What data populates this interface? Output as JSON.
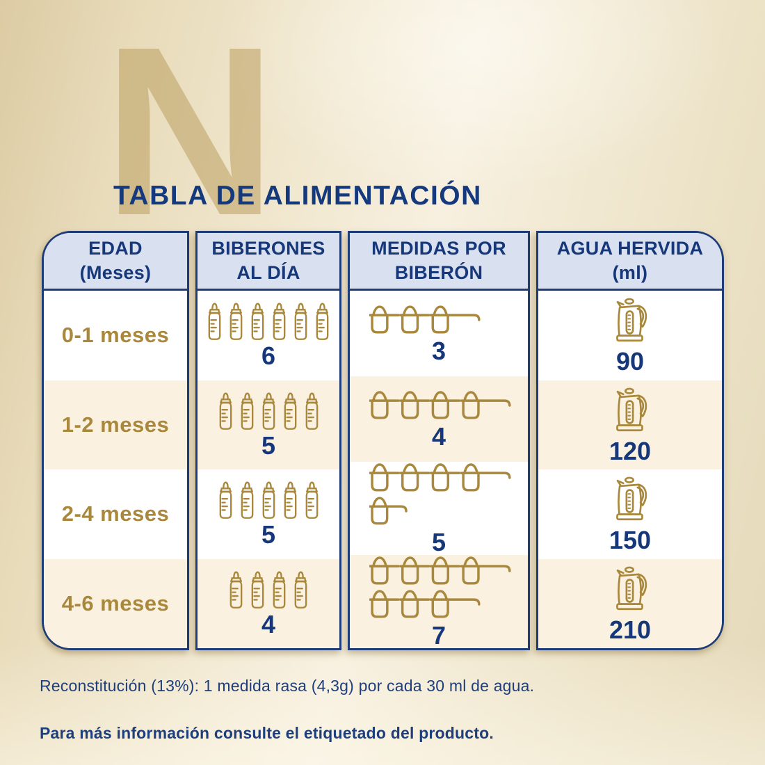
{
  "title": "TABLA DE ALIMENTACIÓN",
  "watermark_letter": "N",
  "table": {
    "headers": [
      {
        "line1": "EDAD",
        "line2": "(Meses)"
      },
      {
        "line1": "BIBERONES",
        "line2": "AL DÍA"
      },
      {
        "line1": "MEDIDAS POR",
        "line2": "BIBERÓN"
      },
      {
        "line1": "AGUA HERVIDA",
        "line2": "(ml)"
      }
    ],
    "rows": [
      {
        "age": "0-1 meses",
        "bottles_per_day": 6,
        "scoops_per_bottle": 3,
        "boiled_water_ml": 90
      },
      {
        "age": "1-2 meses",
        "bottles_per_day": 5,
        "scoops_per_bottle": 4,
        "boiled_water_ml": 120
      },
      {
        "age": "2-4 meses",
        "bottles_per_day": 5,
        "scoops_per_bottle": 5,
        "boiled_water_ml": 150
      },
      {
        "age": "4-6 meses",
        "bottles_per_day": 4,
        "scoops_per_bottle": 7,
        "boiled_water_ml": 210
      }
    ]
  },
  "chart_data": {
    "type": "table",
    "title": "TABLA DE ALIMENTACIÓN",
    "columns": [
      "EDAD (Meses)",
      "BIBERONES AL DÍA",
      "MEDIDAS POR BIBERÓN",
      "AGUA HERVIDA (ml)"
    ],
    "rows": [
      [
        "0-1 meses",
        6,
        3,
        90
      ],
      [
        "1-2 meses",
        5,
        4,
        120
      ],
      [
        "2-4 meses",
        5,
        5,
        150
      ],
      [
        "4-6 meses",
        4,
        7,
        210
      ]
    ],
    "legend_position": "none",
    "notes": "Icon pictograms repeat per value: baby bottles for biberones al día, measuring scoops for medidas por biberón, kettle for agua hervida."
  },
  "footnotes": {
    "reconstitution": "Reconstitución (13%): 1 medida rasa (4,3g) por cada 30 ml de agua.",
    "more_info": "Para más información consulte el etiquetado del producto."
  },
  "icons": {
    "bottle": "baby-bottle-icon",
    "scoop": "measuring-scoop-icon",
    "kettle": "kettle-icon"
  },
  "colors": {
    "navy": "#1d3c78",
    "text_navy": "#16387a",
    "gold": "#a9883c",
    "header_fill": "#d9e0ef",
    "row_cream": "#faf1e0",
    "row_white": "#ffffff",
    "background_beige": "#ece2c8",
    "watermark_tan": "#c9b078"
  }
}
